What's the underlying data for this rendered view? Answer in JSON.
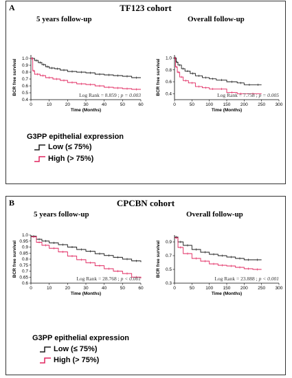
{
  "panels": [
    {
      "letter": "A",
      "cohort": "TF123 cohort",
      "legend_title": "G3PP epithelial expression",
      "legend": [
        {
          "label": "Low (≤ 75%)",
          "color": "#1a1a1a"
        },
        {
          "label": "High (> 75%)",
          "color": "#e0245e"
        }
      ]
    },
    {
      "letter": "B",
      "cohort": "CPCBN cohort",
      "legend_title": "G3PP epithelial expression",
      "legend": [
        {
          "label": "Low (≤ 75%)",
          "color": "#1a1a1a"
        },
        {
          "label": "High (> 75%)",
          "color": "#e0245e"
        }
      ]
    }
  ],
  "chart_data": [
    {
      "type": "line",
      "title": "5 years follow-up",
      "xlabel": "Time (Months)",
      "ylabel": "BCR free survival",
      "xlim": [
        0,
        60
      ],
      "ylim": [
        0.4,
        1.05
      ],
      "xticks": [
        0,
        10,
        20,
        30,
        40,
        50,
        60
      ],
      "yticks": [
        0.4,
        0.5,
        0.6,
        0.7,
        0.8,
        0.9,
        1.0
      ],
      "yticklabels": [
        "0.4",
        "0.5",
        "0.6",
        "0.7",
        "0.8",
        "0.9",
        "1.0"
      ],
      "annotation_text": "Log Rank = 8.859 ; ",
      "annotation_p": "p = 0.003",
      "series": [
        {
          "color": "#1a1a1a",
          "x": [
            0,
            2,
            4,
            6,
            8,
            10,
            13,
            16,
            20,
            25,
            30,
            35,
            40,
            45,
            50,
            55,
            60
          ],
          "y": [
            1.0,
            0.97,
            0.94,
            0.91,
            0.88,
            0.86,
            0.85,
            0.83,
            0.81,
            0.8,
            0.79,
            0.77,
            0.76,
            0.75,
            0.74,
            0.72,
            0.72
          ]
        },
        {
          "color": "#e0245e",
          "x": [
            0,
            1,
            2,
            5,
            8,
            12,
            16,
            20,
            25,
            30,
            35,
            40,
            45,
            50,
            55,
            60
          ],
          "y": [
            1.0,
            0.82,
            0.77,
            0.75,
            0.72,
            0.7,
            0.68,
            0.65,
            0.63,
            0.62,
            0.6,
            0.58,
            0.57,
            0.56,
            0.55,
            0.55
          ]
        }
      ]
    },
    {
      "type": "line",
      "title": "Overall follow-up",
      "xlabel": "Time (Months)",
      "ylabel": "BCR free survival",
      "xlim": [
        0,
        300
      ],
      "ylim": [
        0.3,
        1.05
      ],
      "xticks": [
        0,
        50,
        100,
        150,
        200,
        250,
        300
      ],
      "yticks": [
        0.4,
        0.6,
        0.8,
        1.0
      ],
      "yticklabels": [
        "0.4",
        "0.6",
        "0.8",
        "1.0"
      ],
      "annotation_text": "Log Rank = 7.758 ; ",
      "annotation_p": "p = 0.005",
      "series": [
        {
          "color": "#1a1a1a",
          "x": [
            0,
            5,
            10,
            20,
            30,
            45,
            60,
            80,
            100,
            120,
            150,
            180,
            200,
            230,
            250
          ],
          "y": [
            1.0,
            0.93,
            0.88,
            0.82,
            0.78,
            0.74,
            0.7,
            0.67,
            0.65,
            0.63,
            0.6,
            0.58,
            0.55,
            0.55,
            0.55
          ]
        },
        {
          "color": "#e0245e",
          "x": [
            0,
            3,
            8,
            15,
            25,
            40,
            60,
            80,
            100,
            120,
            150,
            180,
            200,
            250
          ],
          "y": [
            1.0,
            0.85,
            0.76,
            0.68,
            0.62,
            0.58,
            0.52,
            0.5,
            0.48,
            0.48,
            0.42,
            0.4,
            0.4,
            0.4
          ]
        }
      ]
    },
    {
      "type": "line",
      "title": "5 years follow-up",
      "xlabel": "Time (Months)",
      "ylabel": "BCR free survival",
      "xlim": [
        0,
        60
      ],
      "ylim": [
        0.6,
        1.0
      ],
      "xticks": [
        0,
        10,
        20,
        30,
        40,
        50,
        60
      ],
      "yticks": [
        0.6,
        0.65,
        0.7,
        0.75,
        0.8,
        0.85,
        0.9,
        0.95,
        1.0
      ],
      "yticklabels": [
        "0.6",
        "0.65",
        "0.7",
        "0.75",
        "0.8",
        "0.85",
        "0.9",
        "0.95",
        "1.0"
      ],
      "annotation_text": "Log Rank = 28.768 ; ",
      "annotation_p": "p < 0.001",
      "series": [
        {
          "color": "#1a1a1a",
          "x": [
            0,
            3,
            6,
            10,
            15,
            20,
            25,
            30,
            35,
            40,
            45,
            50,
            55,
            60
          ],
          "y": [
            0.99,
            0.965,
            0.95,
            0.935,
            0.92,
            0.9,
            0.88,
            0.865,
            0.845,
            0.83,
            0.815,
            0.8,
            0.785,
            0.775
          ]
        },
        {
          "color": "#e0245e",
          "x": [
            0,
            3,
            6,
            10,
            15,
            20,
            25,
            30,
            35,
            40,
            45,
            50,
            55,
            60
          ],
          "y": [
            0.985,
            0.94,
            0.915,
            0.89,
            0.86,
            0.825,
            0.795,
            0.77,
            0.745,
            0.72,
            0.7,
            0.68,
            0.65,
            0.64
          ]
        }
      ]
    },
    {
      "type": "line",
      "title": "Overall follow-up",
      "xlabel": "Time (Months)",
      "ylabel": "BCR free survival",
      "xlim": [
        0,
        300
      ],
      "ylim": [
        0.3,
        1.0
      ],
      "xticks": [
        0,
        50,
        100,
        150,
        200,
        250,
        300
      ],
      "yticks": [
        0.3,
        0.5,
        0.7,
        0.9
      ],
      "yticklabels": [
        "0.3",
        "0.5",
        "0.7",
        "0.9"
      ],
      "annotation_text": "Log Rank = 23.888 ; ",
      "annotation_p": "p < 0.001",
      "series": [
        {
          "color": "#1a1a1a",
          "x": [
            0,
            10,
            25,
            50,
            75,
            100,
            125,
            150,
            175,
            200,
            225,
            250
          ],
          "y": [
            0.97,
            0.9,
            0.85,
            0.79,
            0.75,
            0.72,
            0.7,
            0.68,
            0.66,
            0.64,
            0.64,
            0.64
          ]
        },
        {
          "color": "#e0245e",
          "x": [
            0,
            10,
            25,
            50,
            75,
            100,
            125,
            150,
            175,
            200,
            225,
            250
          ],
          "y": [
            0.96,
            0.82,
            0.73,
            0.66,
            0.62,
            0.58,
            0.56,
            0.55,
            0.53,
            0.51,
            0.5,
            0.5
          ]
        }
      ]
    }
  ]
}
